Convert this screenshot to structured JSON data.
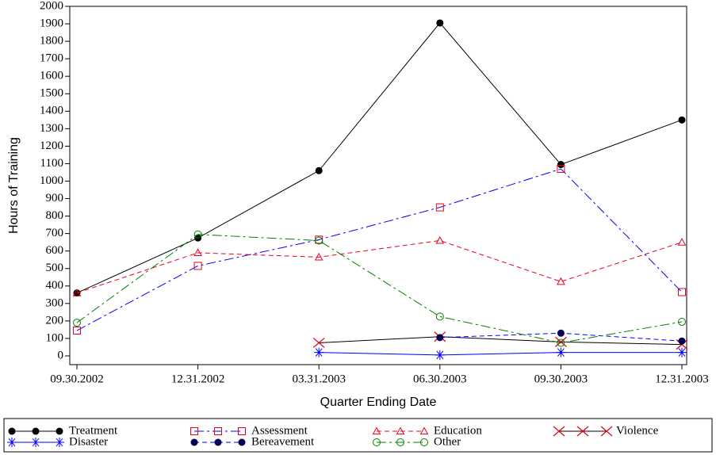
{
  "chart_data": {
    "type": "line",
    "x_label": "Quarter Ending Date",
    "y_label": "Hours of Training",
    "categories": [
      "09.30.2002",
      "12.31.2002",
      "03.31.2003",
      "06.30.2003",
      "09.30.2003",
      "12.31.2003"
    ],
    "ylim": [
      -50,
      2000
    ],
    "yticks": [
      0,
      100,
      200,
      300,
      400,
      500,
      600,
      700,
      800,
      900,
      1000,
      1100,
      1200,
      1300,
      1400,
      1500,
      1600,
      1700,
      1800,
      1900,
      2000
    ],
    "legend": "bottom",
    "series": [
      {
        "name": "Treatment",
        "color": "#000000",
        "marker_color": "#000000",
        "marker": "dot",
        "dash": "solid",
        "values": [
          360,
          675,
          1060,
          1905,
          1095,
          1350
        ]
      },
      {
        "name": "Assessment",
        "color": "#0000ff",
        "marker_color": "#e8001c",
        "marker": "square",
        "dash": "dashdot",
        "values": [
          145,
          515,
          665,
          850,
          1070,
          365
        ]
      },
      {
        "name": "Education",
        "color": "#e8001c",
        "marker_color": "#e8001c",
        "marker": "triangle",
        "dash": "dashed",
        "values": [
          360,
          590,
          565,
          660,
          425,
          650
        ]
      },
      {
        "name": "Violence",
        "color": "#000000",
        "marker_color": "#e8001c",
        "marker": "x",
        "dash": "solid",
        "values": [
          null,
          null,
          75,
          110,
          80,
          65
        ]
      },
      {
        "name": "Disaster",
        "color": "#0000ff",
        "marker_color": "#0000ff",
        "marker": "star",
        "dash": "solid",
        "values": [
          null,
          null,
          20,
          5,
          20,
          20
        ]
      },
      {
        "name": "Bereavement",
        "color": "#0000ff",
        "marker_color": "#000050",
        "marker": "dot",
        "dash": "dashed",
        "values": [
          null,
          null,
          null,
          105,
          130,
          85
        ]
      },
      {
        "name": "Other",
        "color": "#008000",
        "marker_color": "#008000",
        "marker": "circle",
        "dash": "dashdot",
        "values": [
          190,
          695,
          660,
          225,
          75,
          195
        ]
      }
    ]
  }
}
